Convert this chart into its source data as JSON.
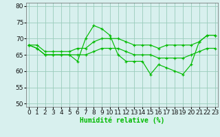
{
  "x": [
    0,
    1,
    2,
    3,
    4,
    5,
    6,
    7,
    8,
    9,
    10,
    11,
    12,
    13,
    14,
    15,
    16,
    17,
    18,
    19,
    20,
    21,
    22,
    23
  ],
  "line1": [
    68,
    67,
    65,
    65,
    65,
    65,
    63,
    70,
    74,
    73,
    71,
    65,
    63,
    63,
    63,
    59,
    62,
    61,
    60,
    59,
    62,
    69,
    71,
    71
  ],
  "line2": [
    68,
    68,
    66,
    66,
    66,
    66,
    67,
    67,
    69,
    70,
    70,
    70,
    69,
    68,
    68,
    68,
    67,
    68,
    68,
    68,
    68,
    69,
    71,
    71
  ],
  "line3": [
    68,
    67,
    65,
    65,
    65,
    65,
    65,
    65,
    66,
    67,
    67,
    67,
    66,
    65,
    65,
    65,
    64,
    64,
    64,
    64,
    65,
    66,
    67,
    67
  ],
  "line_color": "#00bb00",
  "bg_color": "#d8f0ee",
  "grid_color": "#99ccbb",
  "xlabel": "Humidité relative (%)",
  "ylim": [
    49,
    81
  ],
  "yticks": [
    50,
    55,
    60,
    65,
    70,
    75,
    80
  ],
  "xlim": [
    -0.3,
    23.3
  ],
  "axis_fontsize": 7,
  "tick_fontsize": 6.5
}
